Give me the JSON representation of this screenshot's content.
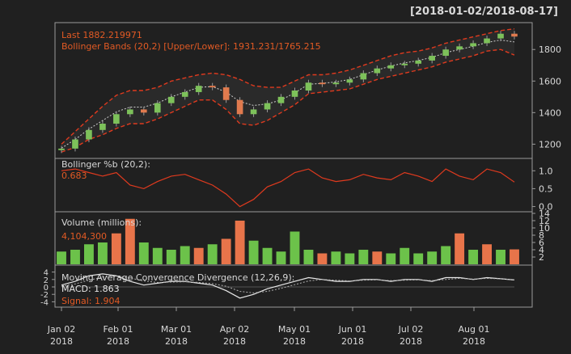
{
  "range_label": "[2018-01-02/2018-08-17]",
  "colors": {
    "background": "#202020",
    "panel_border": "#9a9a9a",
    "text": "#d8d8d8",
    "label_orange": "#e25a24",
    "bollinger_band": "#e03a1e",
    "moving_average": "#cfcfcf",
    "candle_up": "#7dc15a",
    "candle_down": "#e07a4e",
    "volume_up": "#6cc24a",
    "volume_down": "#e8744a",
    "macd_line": "#e8e8e8",
    "signal_line": "#b0b0b0"
  },
  "price_panel": {
    "legend_last": "Last 1882.219971",
    "legend_bbands": "Bollinger Bands (20,2) [Upper/Lower]: 1931.231/1765.215",
    "yticks": [
      "1800",
      "1600",
      "1400",
      "1200"
    ]
  },
  "pctb_panel": {
    "title": "Bollinger %b (20,2):",
    "value": "0.683",
    "yticks": [
      "1.0",
      "0.5",
      "0.0"
    ]
  },
  "volume_panel": {
    "title": "Volume (millions):",
    "value": "4,104,300",
    "yticks": [
      "14",
      "12",
      "10",
      "8",
      "6",
      "4",
      "2"
    ]
  },
  "macd_panel": {
    "title": "Moving Average Convergence Divergence (12,26,9):",
    "macd_label": "MACD: 1.863",
    "signal_label": "Signal: 1.904",
    "yticks": [
      "4",
      "2",
      "0",
      "-2",
      "-4"
    ]
  },
  "x_axis": {
    "ticks": [
      {
        "month": "Jan 02",
        "year": "2018"
      },
      {
        "month": "Feb 01",
        "year": "2018"
      },
      {
        "month": "Mar 01",
        "year": "2018"
      },
      {
        "month": "Apr 02",
        "year": "2018"
      },
      {
        "month": "May 01",
        "year": "2018"
      },
      {
        "month": "Jun 01",
        "year": "2018"
      },
      {
        "month": "Jul 02",
        "year": "2018"
      },
      {
        "month": "Aug 01",
        "year": "2018"
      }
    ]
  },
  "chart_data": [
    {
      "type": "candlestick",
      "title": "Last 1882.219971",
      "subtitle": "Bollinger Bands (20,2) [Upper/Lower]: 1931.231/1765.215",
      "ylim": [
        1120,
        1960
      ],
      "x": [
        "Jan 02",
        "Jan 09",
        "Jan 16",
        "Jan 23",
        "Jan 30",
        "Feb 06",
        "Feb 13",
        "Feb 20",
        "Feb 27",
        "Mar 06",
        "Mar 13",
        "Mar 20",
        "Mar 27",
        "Apr 03",
        "Apr 10",
        "Apr 17",
        "Apr 24",
        "May 01",
        "May 08",
        "May 15",
        "May 22",
        "May 29",
        "Jun 05",
        "Jun 12",
        "Jun 19",
        "Jun 26",
        "Jul 03",
        "Jul 10",
        "Jul 17",
        "Jul 24",
        "Jul 31",
        "Aug 07",
        "Aug 14",
        "Aug 17"
      ],
      "series": [
        {
          "name": "Close",
          "values": [
            1172,
            1230,
            1290,
            1330,
            1390,
            1420,
            1400,
            1460,
            1500,
            1530,
            1570,
            1560,
            1480,
            1390,
            1420,
            1460,
            1500,
            1540,
            1590,
            1580,
            1590,
            1610,
            1650,
            1680,
            1700,
            1710,
            1730,
            1760,
            1800,
            1820,
            1840,
            1870,
            1900,
            1882
          ]
        },
        {
          "name": "Upper",
          "values": [
            1200,
            1280,
            1360,
            1440,
            1510,
            1540,
            1540,
            1560,
            1600,
            1620,
            1640,
            1650,
            1640,
            1610,
            1570,
            1560,
            1560,
            1600,
            1640,
            1640,
            1650,
            1670,
            1700,
            1730,
            1760,
            1780,
            1790,
            1810,
            1840,
            1860,
            1880,
            1900,
            1920,
            1931
          ]
        },
        {
          "name": "Lower",
          "values": [
            1150,
            1180,
            1230,
            1260,
            1300,
            1330,
            1330,
            1360,
            1400,
            1440,
            1480,
            1480,
            1420,
            1330,
            1320,
            1350,
            1400,
            1450,
            1520,
            1530,
            1540,
            1550,
            1580,
            1610,
            1630,
            1650,
            1670,
            1690,
            1720,
            1740,
            1760,
            1790,
            1800,
            1765
          ]
        },
        {
          "name": "MA",
          "values": [
            1175,
            1230,
            1295,
            1350,
            1405,
            1435,
            1435,
            1460,
            1500,
            1530,
            1560,
            1565,
            1530,
            1470,
            1445,
            1455,
            1480,
            1525,
            1580,
            1585,
            1595,
            1610,
            1640,
            1670,
            1695,
            1715,
            1730,
            1750,
            1780,
            1800,
            1820,
            1845,
            1860,
            1848
          ]
        }
      ],
      "yticks": [
        1800,
        1600,
        1400,
        1200
      ]
    },
    {
      "type": "line",
      "title": "Bollinger %b (20,2):",
      "ylim": [
        -0.1,
        1.3
      ],
      "x": [
        "Jan 02",
        "Jan 09",
        "Jan 16",
        "Jan 23",
        "Jan 30",
        "Feb 06",
        "Feb 13",
        "Feb 20",
        "Feb 27",
        "Mar 06",
        "Mar 13",
        "Mar 20",
        "Mar 27",
        "Apr 03",
        "Apr 10",
        "Apr 17",
        "Apr 24",
        "May 01",
        "May 08",
        "May 15",
        "May 22",
        "May 29",
        "Jun 05",
        "Jun 12",
        "Jun 19",
        "Jun 26",
        "Jul 03",
        "Jul 10",
        "Jul 17",
        "Jul 24",
        "Jul 31",
        "Aug 07",
        "Aug 14",
        "Aug 17"
      ],
      "series": [
        {
          "name": "%b",
          "values": [
            1.0,
            1.05,
            0.95,
            0.85,
            0.95,
            0.6,
            0.5,
            0.7,
            0.85,
            0.9,
            0.75,
            0.6,
            0.35,
            0.0,
            0.2,
            0.55,
            0.7,
            0.95,
            1.05,
            0.8,
            0.7,
            0.75,
            0.9,
            0.8,
            0.75,
            0.95,
            0.85,
            0.7,
            1.05,
            0.85,
            0.75,
            1.05,
            0.95,
            0.683
          ]
        }
      ],
      "yticks": [
        1.0,
        0.5,
        0.0
      ]
    },
    {
      "type": "bar",
      "title": "Volume (millions):",
      "ylim": [
        0,
        14
      ],
      "categories": [
        "Jan 02",
        "Jan 09",
        "Jan 16",
        "Jan 23",
        "Jan 30",
        "Feb 06",
        "Feb 13",
        "Feb 20",
        "Feb 27",
        "Mar 06",
        "Mar 13",
        "Mar 20",
        "Mar 27",
        "Apr 03",
        "Apr 10",
        "Apr 17",
        "Apr 24",
        "May 01",
        "May 08",
        "May 15",
        "May 22",
        "May 29",
        "Jun 05",
        "Jun 12",
        "Jun 19",
        "Jun 26",
        "Jul 03",
        "Jul 10",
        "Jul 17",
        "Jul 24",
        "Jul 31",
        "Aug 07",
        "Aug 14",
        "Aug 17"
      ],
      "values": [
        3.5,
        4.0,
        5.5,
        6.0,
        8.5,
        12.5,
        6.0,
        4.5,
        4.0,
        5.0,
        4.5,
        5.5,
        7.0,
        12.0,
        6.5,
        4.5,
        3.5,
        9.0,
        4.0,
        3.0,
        3.5,
        3.0,
        4.0,
        3.5,
        3.0,
        4.5,
        3.0,
        3.5,
        5.0,
        8.5,
        4.0,
        5.5,
        4.0,
        4.1
      ],
      "up": [
        true,
        true,
        true,
        true,
        false,
        false,
        true,
        true,
        true,
        true,
        false,
        true,
        false,
        false,
        true,
        true,
        true,
        true,
        true,
        false,
        true,
        true,
        true,
        false,
        true,
        true,
        true,
        true,
        true,
        false,
        true,
        false,
        true,
        false
      ],
      "yticks": [
        14,
        12,
        10,
        8,
        6,
        4,
        2
      ]
    },
    {
      "type": "line",
      "title": "Moving Average Convergence Divergence (12,26,9):",
      "ylim": [
        -5,
        5
      ],
      "x": [
        "Jan 02",
        "Jan 09",
        "Jan 16",
        "Jan 23",
        "Jan 30",
        "Feb 06",
        "Feb 13",
        "Feb 20",
        "Feb 27",
        "Mar 06",
        "Mar 13",
        "Mar 20",
        "Mar 27",
        "Apr 03",
        "Apr 10",
        "Apr 17",
        "Apr 24",
        "May 01",
        "May 08",
        "May 15",
        "May 22",
        "May 29",
        "Jun 05",
        "Jun 12",
        "Jun 19",
        "Jun 26",
        "Jul 03",
        "Jul 10",
        "Jul 17",
        "Jul 24",
        "Jul 31",
        "Aug 07",
        "Aug 14",
        "Aug 17"
      ],
      "series": [
        {
          "name": "MACD",
          "values": [
            0.5,
            1.5,
            3.0,
            3.5,
            3.0,
            1.5,
            0.5,
            1.0,
            1.5,
            1.5,
            1.0,
            0.5,
            -1.0,
            -3.0,
            -2.0,
            -0.5,
            0.5,
            1.5,
            2.5,
            2.0,
            1.5,
            1.5,
            2.0,
            2.0,
            1.5,
            2.0,
            2.0,
            1.5,
            2.5,
            2.5,
            2.0,
            2.5,
            2.2,
            1.863
          ]
        },
        {
          "name": "Signal",
          "values": [
            0.2,
            0.8,
            1.8,
            2.6,
            3.0,
            2.4,
            1.6,
            1.2,
            1.3,
            1.4,
            1.2,
            0.9,
            0.2,
            -1.2,
            -1.6,
            -1.2,
            -0.4,
            0.6,
            1.6,
            2.0,
            1.8,
            1.6,
            1.8,
            1.9,
            1.7,
            1.8,
            1.9,
            1.7,
            2.0,
            2.3,
            2.1,
            2.3,
            2.2,
            1.904
          ]
        }
      ],
      "yticks": [
        4,
        2,
        0,
        -2,
        -4
      ]
    }
  ]
}
